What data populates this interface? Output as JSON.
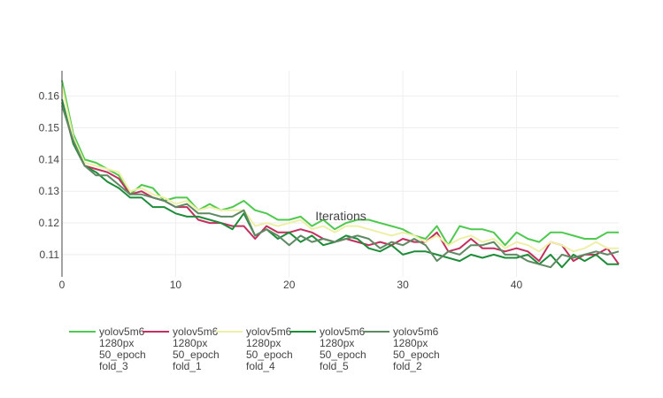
{
  "chart_data": {
    "type": "line",
    "title": "",
    "xlabel": "Iterations",
    "ylabel": "",
    "xlim": [
      0,
      49
    ],
    "ylim": [
      0.103,
      0.168
    ],
    "xticks": [
      0,
      10,
      20,
      30,
      40
    ],
    "xtick_labels": [
      "0",
      "10",
      "20",
      "30",
      "40"
    ],
    "yticks": [
      0.11,
      0.12,
      0.13,
      0.14,
      0.15,
      0.16
    ],
    "ytick_labels": [
      "0.11",
      "0.12",
      "0.13",
      "0.14",
      "0.15",
      "0.16"
    ],
    "grid": true,
    "legend_position": "bottom",
    "series": [
      {
        "name": "yolov5m6 1280px 50_epoch fold_3",
        "legend_lines": [
          "yolov5m6",
          "1280px",
          "50_epoch",
          "fold_3"
        ],
        "color": "#4fc94f",
        "values": [
          0.165,
          0.148,
          0.14,
          0.139,
          0.137,
          0.135,
          0.129,
          0.132,
          0.131,
          0.127,
          0.128,
          0.128,
          0.124,
          0.126,
          0.124,
          0.125,
          0.127,
          0.124,
          0.123,
          0.121,
          0.121,
          0.122,
          0.119,
          0.121,
          0.118,
          0.12,
          0.121,
          0.121,
          0.12,
          0.119,
          0.118,
          0.116,
          0.115,
          0.119,
          0.113,
          0.119,
          0.118,
          0.118,
          0.117,
          0.113,
          0.117,
          0.115,
          0.114,
          0.117,
          0.117,
          0.116,
          0.115,
          0.115,
          0.117,
          0.117
        ]
      },
      {
        "name": "yolov5m6 1280px 50_epoch fold_1",
        "legend_lines": [
          "yolov5m6",
          "1280px",
          "50_epoch",
          "fold_1"
        ],
        "color": "#c2305e",
        "values": [
          0.158,
          0.145,
          0.138,
          0.137,
          0.136,
          0.134,
          0.129,
          0.13,
          0.128,
          0.127,
          0.125,
          0.125,
          0.121,
          0.12,
          0.12,
          0.119,
          0.119,
          0.115,
          0.119,
          0.117,
          0.117,
          0.118,
          0.117,
          0.115,
          0.114,
          0.115,
          0.114,
          0.113,
          0.114,
          0.113,
          0.115,
          0.114,
          0.114,
          0.117,
          0.111,
          0.112,
          0.115,
          0.112,
          0.112,
          0.111,
          0.112,
          0.111,
          0.108,
          0.114,
          0.113,
          0.108,
          0.11,
          0.11,
          0.112,
          0.107
        ]
      },
      {
        "name": "yolov5m6 1280px 50_epoch fold_4",
        "legend_lines": [
          "yolov5m6",
          "1280px",
          "50_epoch",
          "fold_4"
        ],
        "color": "#eef0a8",
        "values": [
          0.163,
          0.147,
          0.139,
          0.138,
          0.137,
          0.136,
          0.13,
          0.131,
          0.129,
          0.128,
          0.126,
          0.127,
          0.124,
          0.125,
          0.124,
          0.124,
          0.124,
          0.119,
          0.12,
          0.119,
          0.12,
          0.121,
          0.118,
          0.119,
          0.117,
          0.119,
          0.119,
          0.118,
          0.117,
          0.116,
          0.117,
          0.116,
          0.114,
          0.116,
          0.113,
          0.115,
          0.116,
          0.114,
          0.115,
          0.112,
          0.114,
          0.113,
          0.111,
          0.114,
          0.113,
          0.111,
          0.112,
          0.114,
          0.112,
          0.112
        ]
      },
      {
        "name": "yolov5m6 1280px 50_epoch fold_5",
        "legend_lines": [
          "yolov5m6",
          "1280px",
          "50_epoch",
          "fold_5"
        ],
        "color": "#1f8c3a",
        "values": [
          0.159,
          0.145,
          0.138,
          0.136,
          0.133,
          0.131,
          0.128,
          0.128,
          0.125,
          0.125,
          0.123,
          0.122,
          0.122,
          0.121,
          0.12,
          0.118,
          0.123,
          0.116,
          0.118,
          0.115,
          0.117,
          0.114,
          0.116,
          0.113,
          0.114,
          0.116,
          0.115,
          0.112,
          0.111,
          0.113,
          0.11,
          0.111,
          0.111,
          0.11,
          0.109,
          0.108,
          0.11,
          0.109,
          0.11,
          0.109,
          0.109,
          0.11,
          0.107,
          0.11,
          0.106,
          0.11,
          0.108,
          0.11,
          0.107,
          0.107
        ]
      },
      {
        "name": "yolov5m6 1280px 50_epoch fold_2",
        "legend_lines": [
          "yolov5m6",
          "1280px",
          "50_epoch",
          "fold_2"
        ],
        "color": "#5f8a64",
        "values": [
          0.157,
          0.146,
          0.138,
          0.135,
          0.135,
          0.132,
          0.129,
          0.129,
          0.128,
          0.127,
          0.125,
          0.126,
          0.123,
          0.123,
          0.122,
          0.122,
          0.124,
          0.116,
          0.118,
          0.116,
          0.113,
          0.116,
          0.114,
          0.115,
          0.114,
          0.115,
          0.116,
          0.115,
          0.112,
          0.114,
          0.113,
          0.115,
          0.113,
          0.108,
          0.111,
          0.11,
          0.113,
          0.113,
          0.114,
          0.11,
          0.11,
          0.108,
          0.107,
          0.106,
          0.11,
          0.109,
          0.11,
          0.111,
          0.11,
          0.111
        ]
      }
    ]
  }
}
